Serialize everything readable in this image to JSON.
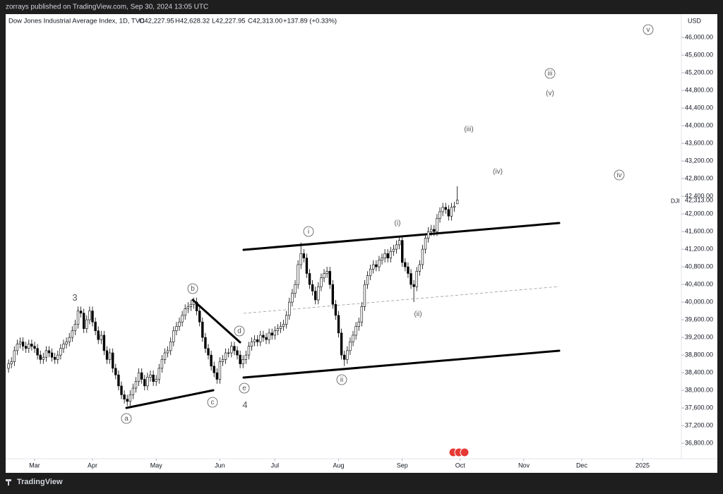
{
  "header": {
    "publisher": "zorrays published on TradingView.com, Sep 30, 2024 13:05 UTC",
    "symbol_line": "Dow Jones Industrial Average Index, 1D, TVC",
    "ohlc_labels": [
      "O42,227.95",
      "H42,628.32",
      "L42,227.95",
      "C42,313.00"
    ],
    "change": "+137.89 (+0.33%)",
    "currency": "USD",
    "ticker": "DJI",
    "last_price_label": "42,313.00"
  },
  "footer": {
    "brand": "TradingView"
  },
  "chart_data": {
    "type": "candlestick",
    "open": [
      38500,
      38600,
      38650,
      38900,
      39050,
      39100,
      39000,
      38950,
      39050,
      39000,
      38950,
      38800,
      38700,
      38750,
      38900,
      38850,
      38750,
      38700,
      38800,
      38950,
      39050,
      39100,
      39200,
      39350,
      39500,
      39800,
      39750,
      39400,
      39600,
      39800,
      39550,
      39350,
      39150,
      39250,
      38900,
      38700,
      38850,
      38500,
      38350,
      38100,
      37900,
      37800,
      37750,
      37900,
      38050,
      38200,
      38400,
      38250,
      38100,
      38300,
      38350,
      38200,
      38250,
      38500,
      38700,
      38850,
      38900,
      39100,
      39350,
      39450,
      39550,
      39700,
      39850,
      39900,
      39950,
      40000,
      39800,
      39550,
      39200,
      38950,
      38800,
      38550,
      38400,
      38250,
      38650,
      38700,
      38850,
      38850,
      39000,
      38900,
      38800,
      38600,
      38700,
      38800,
      39000,
      39100,
      39150,
      39100,
      39250,
      39200,
      39150,
      39300,
      39250,
      39350,
      39400,
      39450,
      39500,
      39700,
      40000,
      40200,
      40400,
      40850,
      41100,
      41000,
      40650,
      40400,
      40250,
      40050,
      40350,
      40550,
      40650,
      40700,
      40400,
      39950,
      39700,
      39300,
      38800,
      38700,
      38900,
      39100,
      39250,
      39450,
      39550,
      39900,
      40400,
      40600,
      40750,
      40850,
      40800,
      40950,
      41000,
      41100,
      41000,
      41150,
      41200,
      41300,
      41400,
      40900,
      40800,
      40650,
      40400,
      40350,
      40700,
      40850,
      41200,
      41450,
      41600,
      41650,
      41600,
      41900,
      42050,
      42150,
      42100,
      41950,
      42150,
      42227.95
    ],
    "high": [
      38700,
      38750,
      39000,
      39150,
      39200,
      39200,
      39100,
      39150,
      39150,
      39100,
      39050,
      38900,
      38850,
      39000,
      39000,
      38950,
      38850,
      38900,
      39050,
      39150,
      39200,
      39300,
      39450,
      39600,
      39900,
      39900,
      39850,
      39700,
      39900,
      39900,
      39650,
      39450,
      39350,
      39350,
      39000,
      38950,
      38950,
      38600,
      38450,
      38200,
      38000,
      37900,
      38000,
      38150,
      38300,
      38500,
      38500,
      38350,
      38400,
      38450,
      38450,
      38350,
      38600,
      38800,
      38950,
      39000,
      39200,
      39450,
      39550,
      39650,
      39800,
      39950,
      40000,
      40050,
      40100,
      40100,
      39900,
      39650,
      39300,
      39050,
      38900,
      38650,
      38500,
      38750,
      38800,
      38950,
      38950,
      39100,
      39100,
      39000,
      38900,
      38800,
      38900,
      39100,
      39200,
      39250,
      39250,
      39350,
      39350,
      39300,
      39400,
      39400,
      39450,
      39500,
      39550,
      39600,
      39800,
      40100,
      40300,
      40500,
      40950,
      41350,
      41200,
      41100,
      40750,
      40500,
      40350,
      40450,
      40650,
      40750,
      40800,
      40800,
      40500,
      40050,
      39800,
      39400,
      38900,
      39000,
      39200,
      39350,
      39550,
      39650,
      40000,
      40500,
      40700,
      40850,
      40950,
      40950,
      41050,
      41100,
      41200,
      41200,
      41250,
      41300,
      41400,
      41500,
      41500,
      41000,
      40900,
      40750,
      40500,
      40800,
      40950,
      41300,
      41550,
      41700,
      41750,
      41750,
      42000,
      42150,
      42250,
      42250,
      42200,
      42250,
      42275,
      42628.32
    ],
    "low": [
      38400,
      38500,
      38550,
      38800,
      38950,
      38900,
      38850,
      38850,
      38900,
      38850,
      38700,
      38600,
      38600,
      38650,
      38750,
      38650,
      38600,
      38600,
      38700,
      38850,
      38950,
      39000,
      39100,
      39250,
      39400,
      39650,
      39300,
      39300,
      39500,
      39450,
      39250,
      39050,
      39050,
      38800,
      38600,
      38600,
      38400,
      38250,
      38000,
      37800,
      37700,
      37650,
      37650,
      37800,
      37950,
      38100,
      38150,
      38000,
      38000,
      38200,
      38100,
      38100,
      38150,
      38400,
      38600,
      38750,
      38800,
      39000,
      39250,
      39350,
      39450,
      39600,
      39750,
      39800,
      39850,
      39700,
      39450,
      39100,
      38850,
      38700,
      38450,
      38300,
      38150,
      38150,
      38550,
      38600,
      38750,
      38750,
      38800,
      38700,
      38500,
      38500,
      38600,
      38700,
      38900,
      39000,
      39000,
      39000,
      39100,
      39050,
      39050,
      39150,
      39150,
      39250,
      39300,
      39350,
      39400,
      39600,
      39900,
      40100,
      40300,
      40750,
      40900,
      40550,
      40300,
      40150,
      39950,
      39950,
      40250,
      40450,
      40550,
      40300,
      39850,
      39600,
      39200,
      38700,
      38550,
      38600,
      38800,
      39000,
      39150,
      39350,
      39450,
      39800,
      40300,
      40500,
      40650,
      40700,
      40700,
      40850,
      40900,
      40900,
      40900,
      41050,
      41100,
      41200,
      40800,
      40700,
      40550,
      40300,
      40000,
      40250,
      40600,
      40750,
      41100,
      41350,
      41500,
      41500,
      41500,
      41800,
      41950,
      42000,
      41850,
      41850,
      42050,
      42227.95
    ],
    "close": [
      38600,
      38650,
      38900,
      39050,
      39100,
      39000,
      38950,
      39050,
      39000,
      38950,
      38800,
      38700,
      38750,
      38900,
      38850,
      38750,
      38700,
      38800,
      38950,
      39050,
      39100,
      39200,
      39350,
      39500,
      39800,
      39750,
      39400,
      39600,
      39800,
      39550,
      39350,
      39150,
      39250,
      38900,
      38700,
      38850,
      38500,
      38350,
      38100,
      37900,
      37800,
      37750,
      37900,
      38050,
      38200,
      38400,
      38250,
      38100,
      38300,
      38350,
      38200,
      38250,
      38500,
      38700,
      38850,
      38900,
      39100,
      39350,
      39450,
      39550,
      39700,
      39850,
      39900,
      39950,
      40000,
      39800,
      39550,
      39200,
      38950,
      38800,
      38550,
      38400,
      38250,
      38650,
      38700,
      38850,
      38850,
      39000,
      38900,
      38800,
      38600,
      38700,
      38800,
      39000,
      39100,
      39150,
      39100,
      39250,
      39200,
      39150,
      39300,
      39250,
      39350,
      39400,
      39450,
      39500,
      39700,
      40000,
      40200,
      40400,
      40850,
      41100,
      41000,
      40650,
      40400,
      40250,
      40050,
      40350,
      40550,
      40650,
      40700,
      40400,
      39950,
      39700,
      39300,
      38800,
      38700,
      38900,
      39100,
      39250,
      39450,
      39550,
      39900,
      40400,
      40600,
      40750,
      40850,
      40800,
      40950,
      41000,
      41100,
      41000,
      41150,
      41200,
      41300,
      41400,
      40900,
      40800,
      40650,
      40400,
      40350,
      40700,
      40850,
      41200,
      41450,
      41600,
      41650,
      41600,
      41900,
      42050,
      42150,
      42100,
      41950,
      42150,
      42175.11,
      42313
    ],
    "up_color": "#ffffff",
    "down_color": "#000000",
    "outline_color": "#000000",
    "xlim": [
      -1,
      232.4
    ],
    "xticks": [
      {
        "value": 9,
        "label": "Mar"
      },
      {
        "value": 29,
        "label": "Apr"
      },
      {
        "value": 51,
        "label": "May"
      },
      {
        "value": 73,
        "label": "Jun"
      },
      {
        "value": 92,
        "label": "Jul"
      },
      {
        "value": 114,
        "label": "Aug"
      },
      {
        "value": 136,
        "label": "Sep"
      },
      {
        "value": 156,
        "label": "Oct"
      },
      {
        "value": 178,
        "label": "Nov"
      },
      {
        "value": 198,
        "label": "Dec"
      },
      {
        "value": 219,
        "label": "2025"
      }
    ],
    "ylim": [
      36450,
      46530
    ],
    "yticks": [
      {
        "value": 36800,
        "label": "36,800.00"
      },
      {
        "value": 37200,
        "label": "37,200.00"
      },
      {
        "value": 37600,
        "label": "37,600.00"
      },
      {
        "value": 38000,
        "label": "38,000.00"
      },
      {
        "value": 38400,
        "label": "38,400.00"
      },
      {
        "value": 38800,
        "label": "38,800.00"
      },
      {
        "value": 39200,
        "label": "39,200.00"
      },
      {
        "value": 39600,
        "label": "39,600.00"
      },
      {
        "value": 40000,
        "label": "40,000.00"
      },
      {
        "value": 40400,
        "label": "40,400.00"
      },
      {
        "value": 40800,
        "label": "40,800.00"
      },
      {
        "value": 41200,
        "label": "41,200.00"
      },
      {
        "value": 41600,
        "label": "41,600.00"
      },
      {
        "value": 42000,
        "label": "42,000.00"
      },
      {
        "value": 42400,
        "label": "42,400.00"
      },
      {
        "value": 42800,
        "label": "42,800.00"
      },
      {
        "value": 43200,
        "label": "43,200.00"
      },
      {
        "value": 43600,
        "label": "43,600.00"
      },
      {
        "value": 44000,
        "label": "44,000.00"
      },
      {
        "value": 44400,
        "label": "44,400.00"
      },
      {
        "value": 44800,
        "label": "44,800.00"
      },
      {
        "value": 45200,
        "label": "45,200.00"
      },
      {
        "value": 45600,
        "label": "45,600.00"
      },
      {
        "value": 46000,
        "label": "46,000.00"
      }
    ],
    "annotations": [
      "3",
      "4",
      "a",
      "b",
      "c",
      "d",
      "e",
      "i",
      "ii",
      "iii",
      "iv",
      "v",
      "(i)",
      "(ii)",
      "(iii)",
      "(iv)",
      "(v)"
    ]
  }
}
